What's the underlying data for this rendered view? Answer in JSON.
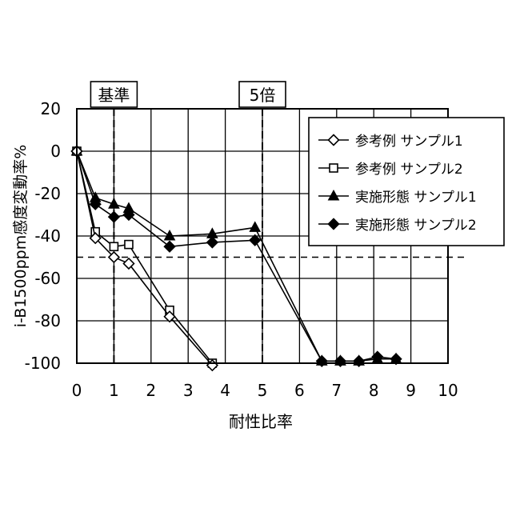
{
  "chart_data": {
    "type": "line",
    "xlabel": "耐性比率",
    "ylabel": "i-B1500ppm感度変動率%",
    "xlim": [
      0,
      10
    ],
    "ylim": [
      -100,
      20
    ],
    "x_ticks": [
      "0",
      "1",
      "2",
      "3",
      "4",
      "5",
      "6",
      "7",
      "8",
      "9",
      "10"
    ],
    "y_ticks": [
      "20",
      "0",
      "-20",
      "-40",
      "-60",
      "-80",
      "-100"
    ],
    "grid": true,
    "legend_position": "top-right",
    "annotations": [
      {
        "label": "基準",
        "x": 1
      },
      {
        "label": "5倍",
        "x": 5
      }
    ],
    "reference_line": {
      "y": -50,
      "style": "dashed"
    },
    "series": [
      {
        "name": "参考例 サンプル1",
        "marker": "diamond-open",
        "x": [
          0,
          0.5,
          1.0,
          1.4,
          2.5,
          3.65
        ],
        "y": [
          0,
          -41,
          -50,
          -53,
          -78,
          -101
        ]
      },
      {
        "name": "参考例 サンプル2",
        "marker": "square-open",
        "x": [
          0,
          0.5,
          1.0,
          1.4,
          2.5,
          3.65
        ],
        "y": [
          0,
          -38,
          -45,
          -44,
          -75,
          -100
        ]
      },
      {
        "name": "実施形態 サンプル1",
        "marker": "triangle-filled",
        "x": [
          0,
          0.5,
          1.0,
          1.4,
          2.5,
          3.65,
          4.8,
          6.6,
          7.1,
          7.6,
          8.1,
          8.6
        ],
        "y": [
          0,
          -22,
          -25,
          -27,
          -40,
          -39,
          -36,
          -99,
          -99,
          -99,
          -98,
          -98
        ]
      },
      {
        "name": "実施形態 サンプル2",
        "marker": "diamond-filled",
        "x": [
          0,
          0.5,
          1.0,
          1.4,
          2.5,
          3.65,
          4.8,
          6.6,
          7.1,
          7.6,
          8.1,
          8.6
        ],
        "y": [
          0,
          -25,
          -31,
          -30,
          -45,
          -43,
          -42,
          -99,
          -99,
          -99,
          -97,
          -98
        ]
      }
    ]
  }
}
